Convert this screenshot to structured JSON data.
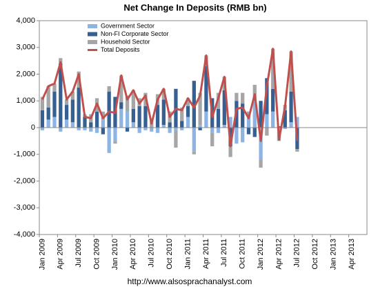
{
  "chart_data": {
    "type": "combo",
    "title": "Net Change In Deposits (RMB bn)",
    "source": "http://www.alsosprachanalyst.com",
    "categories": [
      "Jan 2009",
      null,
      null,
      "Apr 2009",
      null,
      null,
      "Jul 2009",
      null,
      null,
      "Oct 2009",
      null,
      null,
      "Jan 2010",
      null,
      null,
      "Apr 2010",
      null,
      null,
      "Jul 2010",
      null,
      null,
      "Oct 2010",
      null,
      null,
      "Jan 2011",
      null,
      null,
      "Apr 2011",
      null,
      null,
      "Jul 2011",
      null,
      null,
      "Oct 2011",
      null,
      null,
      "Jan 2012",
      null,
      null,
      "Apr 2012",
      null,
      null,
      "Jul 2012",
      null,
      null,
      "Oct 2012",
      null,
      null,
      "Jan 2013",
      null,
      null,
      "Apr 2013",
      null,
      null
    ],
    "series": [
      {
        "name": "Government Sector",
        "type": "bar",
        "color": "#8eb4e3",
        "values": [
          -100,
          300,
          400,
          -150,
          300,
          200,
          -100,
          -100,
          -150,
          -200,
          300,
          -950,
          -500,
          700,
          600,
          200,
          -200,
          -100,
          -150,
          -200,
          100,
          -200,
          -100,
          -100,
          400,
          -900,
          100,
          600,
          -200,
          -200,
          100,
          400,
          -600,
          -550,
          400,
          1000,
          -1200,
          500,
          600,
          -300,
          -50,
          200,
          400,
          null,
          null,
          null,
          null,
          null,
          null,
          null,
          null,
          null,
          null,
          null
        ]
      },
      {
        "name": "Non-FI Corporate Sector",
        "type": "bar",
        "color": "#376092",
        "values": [
          650,
          450,
          950,
          2400,
          550,
          850,
          1500,
          400,
          200,
          600,
          -250,
          1350,
          1150,
          250,
          -150,
          500,
          800,
          800,
          0,
          850,
          950,
          200,
          1450,
          250,
          400,
          1750,
          -100,
          1700,
          1100,
          700,
          1300,
          -700,
          1000,
          900,
          -250,
          -350,
          1000,
          1350,
          850,
          50,
          650,
          1150,
          -800,
          null,
          null,
          null,
          null,
          null,
          null,
          null,
          null,
          null,
          null,
          null
        ]
      },
      {
        "name": "Household Sector",
        "type": "bar",
        "color": "#a6a6a6",
        "values": [
          500,
          800,
          300,
          200,
          200,
          300,
          600,
          100,
          300,
          500,
          300,
          200,
          -100,
          1000,
          600,
          700,
          300,
          500,
          300,
          400,
          400,
          400,
          -650,
          500,
          300,
          -100,
          1200,
          400,
          -500,
          600,
          500,
          -400,
          300,
          400,
          200,
          600,
          -300,
          -300,
          1500,
          -200,
          200,
          1500,
          -100,
          null,
          null,
          null,
          null,
          null,
          null,
          null,
          null,
          null,
          null,
          null
        ]
      },
      {
        "name": "Total Deposits",
        "type": "line",
        "color": "#c0504d",
        "values": [
          1050,
          1550,
          1650,
          2450,
          1050,
          1350,
          2000,
          400,
          350,
          900,
          350,
          600,
          550,
          1950,
          1050,
          1400,
          900,
          1200,
          150,
          1050,
          1450,
          400,
          700,
          650,
          1100,
          750,
          1200,
          2700,
          400,
          1100,
          1900,
          -700,
          700,
          750,
          350,
          1250,
          -500,
          1550,
          2950,
          -450,
          800,
          2850,
          -500,
          null,
          null,
          null,
          null,
          null,
          null,
          null,
          null,
          null,
          null,
          null
        ]
      }
    ],
    "ylim": [
      -4000,
      4000
    ],
    "yticks": [
      {
        "value": -4000,
        "label": "-4,000"
      },
      {
        "value": -3000,
        "label": "-3,000"
      },
      {
        "value": -2000,
        "label": "-2,000"
      },
      {
        "value": -1000,
        "label": "-1,000"
      },
      0,
      {
        "value": 1000,
        "label": "1,000"
      },
      {
        "value": 2000,
        "label": "2,000"
      },
      {
        "value": 3000,
        "label": "3,000"
      },
      {
        "value": 4000,
        "label": "4,000"
      }
    ],
    "legend": "top-left",
    "grid": false
  }
}
